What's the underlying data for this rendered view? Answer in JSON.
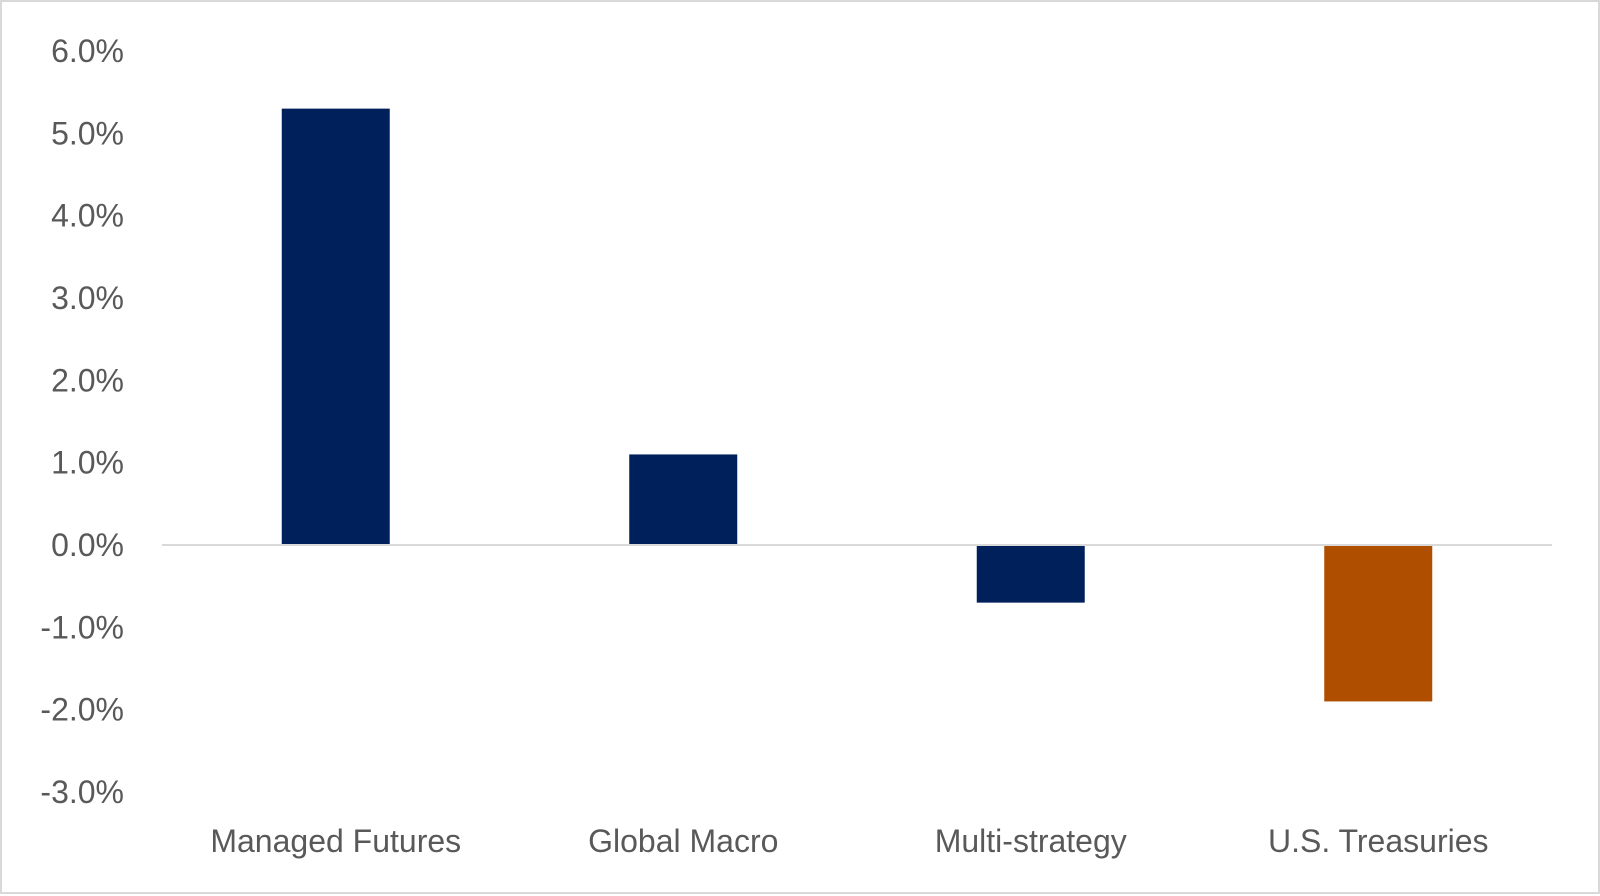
{
  "chart_data": {
    "type": "bar",
    "title": "",
    "xlabel": "",
    "ylabel": "",
    "categories": [
      "Managed Futures",
      "Global Macro",
      "Multi-strategy",
      "U.S. Treasuries"
    ],
    "values": [
      5.3,
      1.1,
      -0.7,
      -1.9
    ],
    "value_unit": "%",
    "colors": [
      "#00205b",
      "#00205b",
      "#00205b",
      "#b04e00"
    ],
    "ylim": [
      -3.0,
      6.0
    ],
    "yticks": [
      6.0,
      5.0,
      4.0,
      3.0,
      2.0,
      1.0,
      0.0,
      -1.0,
      -2.0,
      -3.0
    ],
    "ytick_labels": [
      "6.0%",
      "5.0%",
      "4.0%",
      "3.0%",
      "2.0%",
      "1.0%",
      "0.0%",
      "-1.0%",
      "-2.0%",
      "-3.0%"
    ],
    "gridlines": false,
    "legend": "none",
    "zero_line_color": "#d9d9d9"
  }
}
